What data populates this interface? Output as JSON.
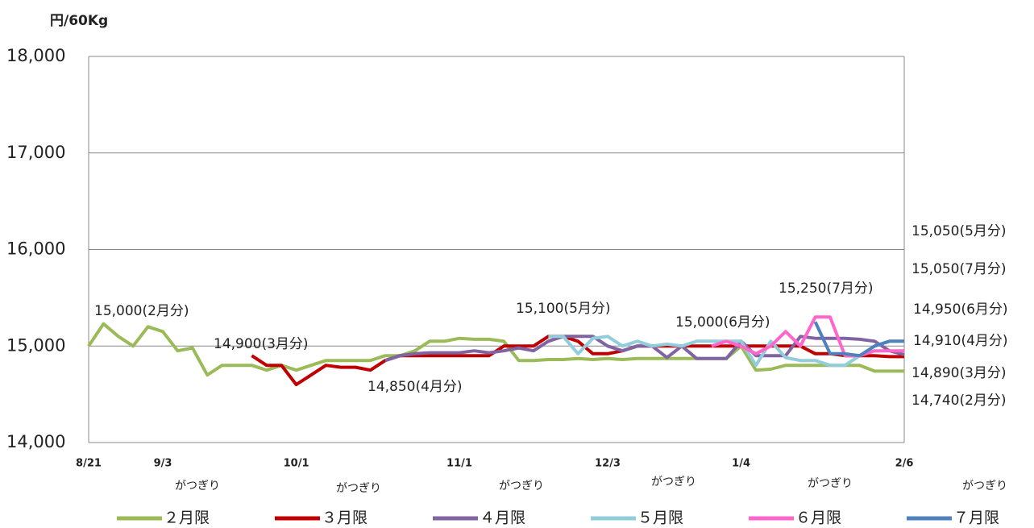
{
  "chart_data": {
    "type": "line",
    "y_label": "円/60Kg",
    "categories": [
      "8/21",
      null,
      null,
      null,
      null,
      "9/3",
      null,
      null,
      null,
      null,
      null,
      null,
      null,
      null,
      "10/1",
      null,
      null,
      null,
      null,
      null,
      null,
      null,
      null,
      null,
      null,
      "11/1",
      null,
      null,
      null,
      null,
      null,
      null,
      null,
      null,
      null,
      "12/3",
      null,
      null,
      null,
      null,
      null,
      null,
      null,
      null,
      "1/4",
      null,
      null,
      null,
      null,
      null,
      null,
      null,
      null,
      null,
      null,
      "2/6"
    ],
    "x_sublabels": [
      "がつぎり",
      "がつぎり",
      "がつぎり",
      "がつぎり",
      "がつぎり",
      "がつぎり"
    ],
    "ylim": [
      14000,
      18000
    ],
    "yticks": [
      {
        "value": 14000,
        "label": "14,000"
      },
      {
        "value": 15000,
        "label": "15,000"
      },
      {
        "value": 16000,
        "label": "16,000"
      },
      {
        "value": 17000,
        "label": "17,000"
      },
      {
        "value": 18000,
        "label": "18,000"
      }
    ],
    "grid": true,
    "legend": "bottom",
    "series": [
      {
        "name": "２月限",
        "color": "#9bbb59",
        "values": [
          15000,
          15230,
          15100,
          15000,
          15200,
          15150,
          14950,
          14980,
          14700,
          14800,
          14800,
          14800,
          14750,
          14800,
          14750,
          14800,
          14850,
          14850,
          14850,
          14850,
          14900,
          14900,
          14950,
          15050,
          15050,
          15080,
          15070,
          15070,
          15050,
          14850,
          14850,
          14860,
          14860,
          14870,
          14860,
          14870,
          14860,
          14870,
          14870,
          14870,
          14870,
          14870,
          14870,
          14870,
          15000,
          14750,
          14760,
          14800,
          14800,
          14800,
          14800,
          14800,
          14800,
          14740,
          14740,
          14740
        ]
      },
      {
        "name": "３月限",
        "color": "#c00000",
        "values": [
          null,
          null,
          null,
          null,
          null,
          null,
          null,
          null,
          null,
          null,
          null,
          14900,
          14800,
          14800,
          14600,
          14700,
          14800,
          14780,
          14780,
          14750,
          14850,
          14900,
          14900,
          14900,
          14900,
          14900,
          14900,
          14900,
          15000,
          15000,
          15000,
          15100,
          15100,
          15050,
          14920,
          14920,
          14950,
          15000,
          15000,
          15000,
          15000,
          15000,
          15000,
          15000,
          15000,
          15000,
          15000,
          15000,
          15000,
          14920,
          14920,
          14900,
          14900,
          14900,
          14890,
          14890
        ]
      },
      {
        "name": "４月限",
        "color": "#8064a2",
        "values": [
          null,
          null,
          null,
          null,
          null,
          null,
          null,
          null,
          null,
          null,
          null,
          null,
          null,
          null,
          null,
          null,
          null,
          null,
          null,
          null,
          14850,
          14900,
          14920,
          14930,
          14930,
          14930,
          14950,
          14930,
          14950,
          14980,
          14950,
          15050,
          15100,
          15100,
          15100,
          15000,
          14950,
          15000,
          15000,
          14880,
          15000,
          14870,
          14870,
          14870,
          15050,
          14900,
          14900,
          14900,
          15100,
          15080,
          15080,
          15080,
          15070,
          15050,
          14950,
          14910
        ]
      },
      {
        "name": "５月限",
        "color": "#92cddc",
        "values": [
          null,
          null,
          null,
          null,
          null,
          null,
          null,
          null,
          null,
          null,
          null,
          null,
          null,
          null,
          null,
          null,
          null,
          null,
          null,
          null,
          null,
          null,
          null,
          null,
          null,
          null,
          null,
          null,
          null,
          null,
          null,
          15100,
          15100,
          14920,
          15080,
          15100,
          15000,
          15050,
          15000,
          15020,
          15000,
          15050,
          15050,
          15050,
          15050,
          14800,
          15050,
          14880,
          14850,
          14850,
          14800,
          14800,
          14900,
          15000,
          15050,
          15050
        ]
      },
      {
        "name": "６月限",
        "color": "#ff66cc",
        "values": [
          null,
          null,
          null,
          null,
          null,
          null,
          null,
          null,
          null,
          null,
          null,
          null,
          null,
          null,
          null,
          null,
          null,
          null,
          null,
          null,
          null,
          null,
          null,
          null,
          null,
          null,
          null,
          null,
          null,
          null,
          null,
          null,
          null,
          null,
          null,
          null,
          null,
          null,
          null,
          null,
          null,
          null,
          15000,
          15050,
          15000,
          14920,
          15000,
          15150,
          15000,
          15300,
          15300,
          14900,
          14900,
          14950,
          14950,
          14950
        ]
      },
      {
        "name": "７月限",
        "color": "#4f81bd",
        "values": [
          null,
          null,
          null,
          null,
          null,
          null,
          null,
          null,
          null,
          null,
          null,
          null,
          null,
          null,
          null,
          null,
          null,
          null,
          null,
          null,
          null,
          null,
          null,
          null,
          null,
          null,
          null,
          null,
          null,
          null,
          null,
          null,
          null,
          null,
          null,
          null,
          null,
          null,
          null,
          null,
          null,
          null,
          null,
          null,
          null,
          null,
          null,
          null,
          null,
          15250,
          14920,
          14920,
          14900,
          15000,
          15050,
          15050
        ]
      }
    ],
    "annotations": [
      "15,000(2月分)",
      "14,900(3月分)",
      "14,850(4月分)",
      "15,100(5月分)",
      "15,000(6月分)",
      "15,250(7月分)",
      "15,050(5月分)",
      "15,050(7月分)",
      "14,950(6月分)",
      "14,910(4月分)",
      "14,890(3月分)",
      "14,740(2月分)"
    ]
  }
}
